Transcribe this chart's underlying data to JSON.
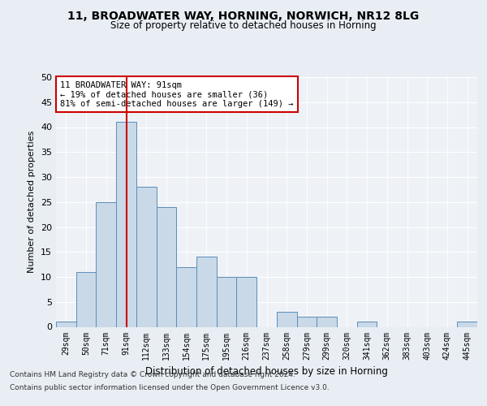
{
  "title1": "11, BROADWATER WAY, HORNING, NORWICH, NR12 8LG",
  "title2": "Size of property relative to detached houses in Horning",
  "xlabel": "Distribution of detached houses by size in Horning",
  "ylabel": "Number of detached properties",
  "categories": [
    "29sqm",
    "50sqm",
    "71sqm",
    "91sqm",
    "112sqm",
    "133sqm",
    "154sqm",
    "175sqm",
    "195sqm",
    "216sqm",
    "237sqm",
    "258sqm",
    "279sqm",
    "299sqm",
    "320sqm",
    "341sqm",
    "362sqm",
    "383sqm",
    "403sqm",
    "424sqm",
    "445sqm"
  ],
  "values": [
    1,
    11,
    25,
    41,
    28,
    24,
    12,
    14,
    10,
    10,
    0,
    3,
    2,
    2,
    0,
    1,
    0,
    0,
    0,
    0,
    1
  ],
  "bar_color": "#c9d9e8",
  "bar_edge_color": "#5b8db8",
  "vline_x": 3,
  "vline_color": "#cc0000",
  "annotation_text": "11 BROADWATER WAY: 91sqm\n← 19% of detached houses are smaller (36)\n81% of semi-detached houses are larger (149) →",
  "annotation_box_color": "#ffffff",
  "annotation_box_edge": "#cc0000",
  "bg_color": "#e8eef4",
  "plot_bg_color": "#eef2f7",
  "footer1": "Contains HM Land Registry data © Crown copyright and database right 2024.",
  "footer2": "Contains public sector information licensed under the Open Government Licence v3.0.",
  "ylim": [
    0,
    50
  ],
  "yticks": [
    0,
    5,
    10,
    15,
    20,
    25,
    30,
    35,
    40,
    45,
    50
  ]
}
